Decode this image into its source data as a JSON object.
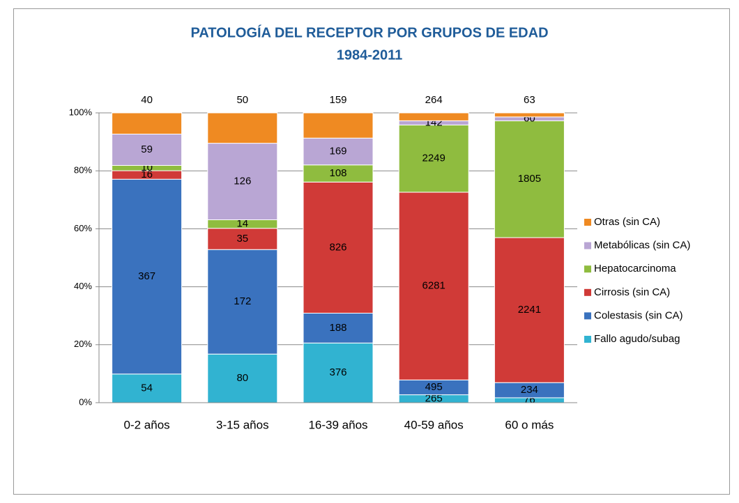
{
  "chart_data": {
    "type": "bar",
    "stacking": "percent",
    "title": "PATOLOGÍA DEL RECEPTOR POR GRUPOS DE EDAD",
    "subtitle": "1984-2011",
    "categories": [
      "0-2 años",
      "3-15 años",
      "16-39 años",
      "40-59 años",
      "60 o más"
    ],
    "series": [
      {
        "name": "Fallo agudo/subag",
        "color": "#31b3d1",
        "values": [
          54,
          80,
          376,
          265,
          76
        ]
      },
      {
        "name": "Colestasis (sin CA)",
        "color": "#3a72be",
        "values": [
          367,
          172,
          188,
          495,
          234
        ]
      },
      {
        "name": "Cirrosis (sin CA)",
        "color": "#d03a37",
        "values": [
          16,
          35,
          826,
          6281,
          2241
        ]
      },
      {
        "name": "Hepatocarcinoma",
        "color": "#8fbc3f",
        "values": [
          10,
          14,
          108,
          2249,
          1805
        ]
      },
      {
        "name": "Metabólicas (sin CA)",
        "color": "#b9a6d4",
        "values": [
          59,
          126,
          169,
          142,
          60
        ]
      },
      {
        "name": "Otras (sin CA)",
        "color": "#ef8a22",
        "values": [
          40,
          50,
          159,
          264,
          63
        ]
      }
    ],
    "ylim": [
      0,
      100
    ],
    "yticks": [
      {
        "value": 0,
        "label": "0%"
      },
      {
        "value": 20,
        "label": "20%"
      },
      {
        "value": 40,
        "label": "40%"
      },
      {
        "value": 60,
        "label": "60%"
      },
      {
        "value": 80,
        "label": "80%"
      },
      {
        "value": 100,
        "label": "100%"
      }
    ],
    "grid": true,
    "legend": "right"
  }
}
